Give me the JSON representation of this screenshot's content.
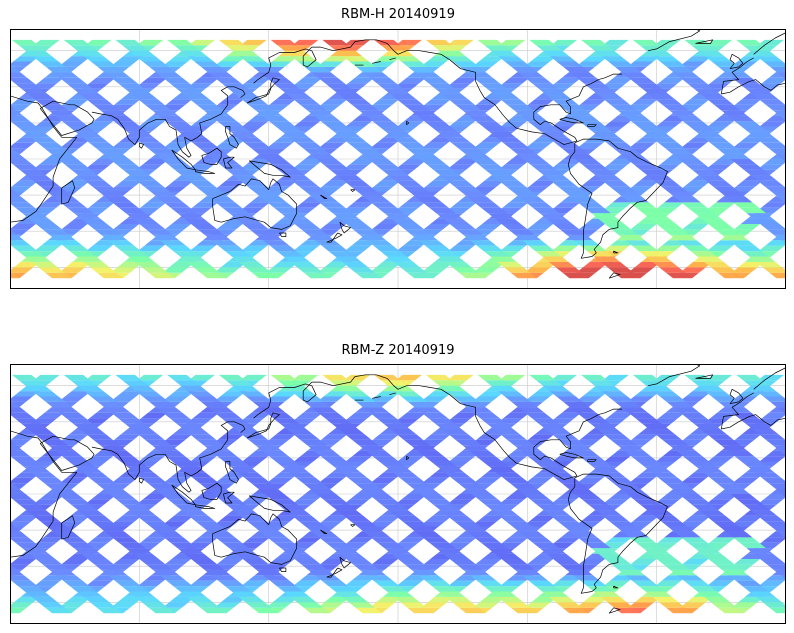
{
  "panels": [
    {
      "title": "RBM-H 20140919",
      "species": "H",
      "intensity": {
        "base": 0.1,
        "north_polar_band_peak": 0.62,
        "north_polar_band_longitude_center": 175,
        "south_polar_band_peak": 0.85,
        "south_polar_band_longitude_center": 300,
        "secondary_south_peak_longitude": 35
      }
    },
    {
      "title": "RBM-Z 20140919",
      "species": "Z",
      "intensity": {
        "base": 0.05,
        "north_polar_band_peak": 0.35,
        "north_polar_band_longitude_center": 200,
        "south_polar_band_peak": 0.5,
        "south_polar_band_longitude_center": 315,
        "secondary_south_peak_longitude": 215
      }
    }
  ],
  "map": {
    "projection": "equirectangular",
    "lon_range": [
      20,
      380
    ],
    "lat_range": [
      -72,
      72
    ],
    "gridlines_lon": [
      80,
      140,
      200,
      260,
      320
    ],
    "gridlines_lat": [
      -60,
      -40,
      -20,
      0,
      20,
      40,
      60
    ],
    "swath_half_width_deg": 4.5,
    "swath_spacing_deg": 24,
    "data_lat_range": [
      -66,
      66
    ]
  },
  "colormap": [
    "#5b5bef",
    "#6b8bff",
    "#5ad8ff",
    "#7dffa8",
    "#f4f26a",
    "#ffb24a",
    "#ff6b5a",
    "#d9504c"
  ],
  "coastlines": "simplified-continent-outlines"
}
